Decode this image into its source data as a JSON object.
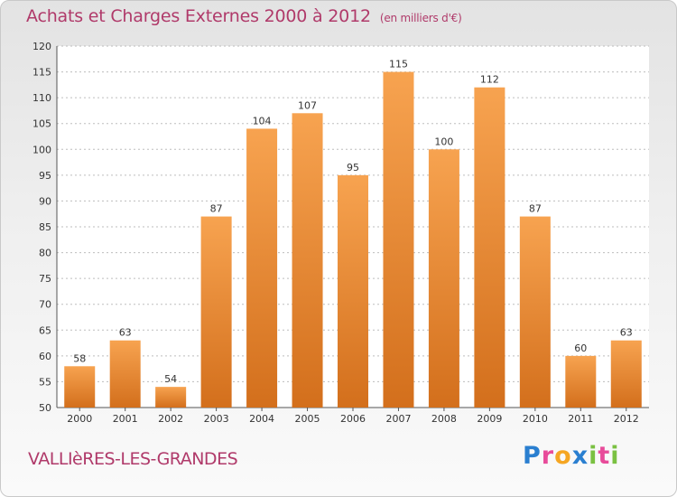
{
  "header": {
    "title": "Achats et Charges Externes 2000 à 2012",
    "unit": "(en milliers d'€)"
  },
  "footer": {
    "town": "VALLIèRES-LES-GRANDES",
    "logo": "Proxiti"
  },
  "colors": {
    "bar_top": "#f7a350",
    "bar_bottom": "#d36f1c",
    "title": "#b03a6a"
  },
  "chart_data": {
    "type": "bar",
    "categories": [
      "2000",
      "2001",
      "2002",
      "2003",
      "2004",
      "2005",
      "2006",
      "2007",
      "2008",
      "2009",
      "2010",
      "2011",
      "2012"
    ],
    "values": [
      58,
      63,
      54,
      87,
      104,
      107,
      95,
      115,
      100,
      112,
      87,
      60,
      63
    ],
    "ylim": [
      50,
      120
    ],
    "yticks": [
      50,
      55,
      60,
      65,
      70,
      75,
      80,
      85,
      90,
      95,
      100,
      105,
      110,
      115,
      120
    ],
    "grid": true,
    "data_labels": true
  }
}
